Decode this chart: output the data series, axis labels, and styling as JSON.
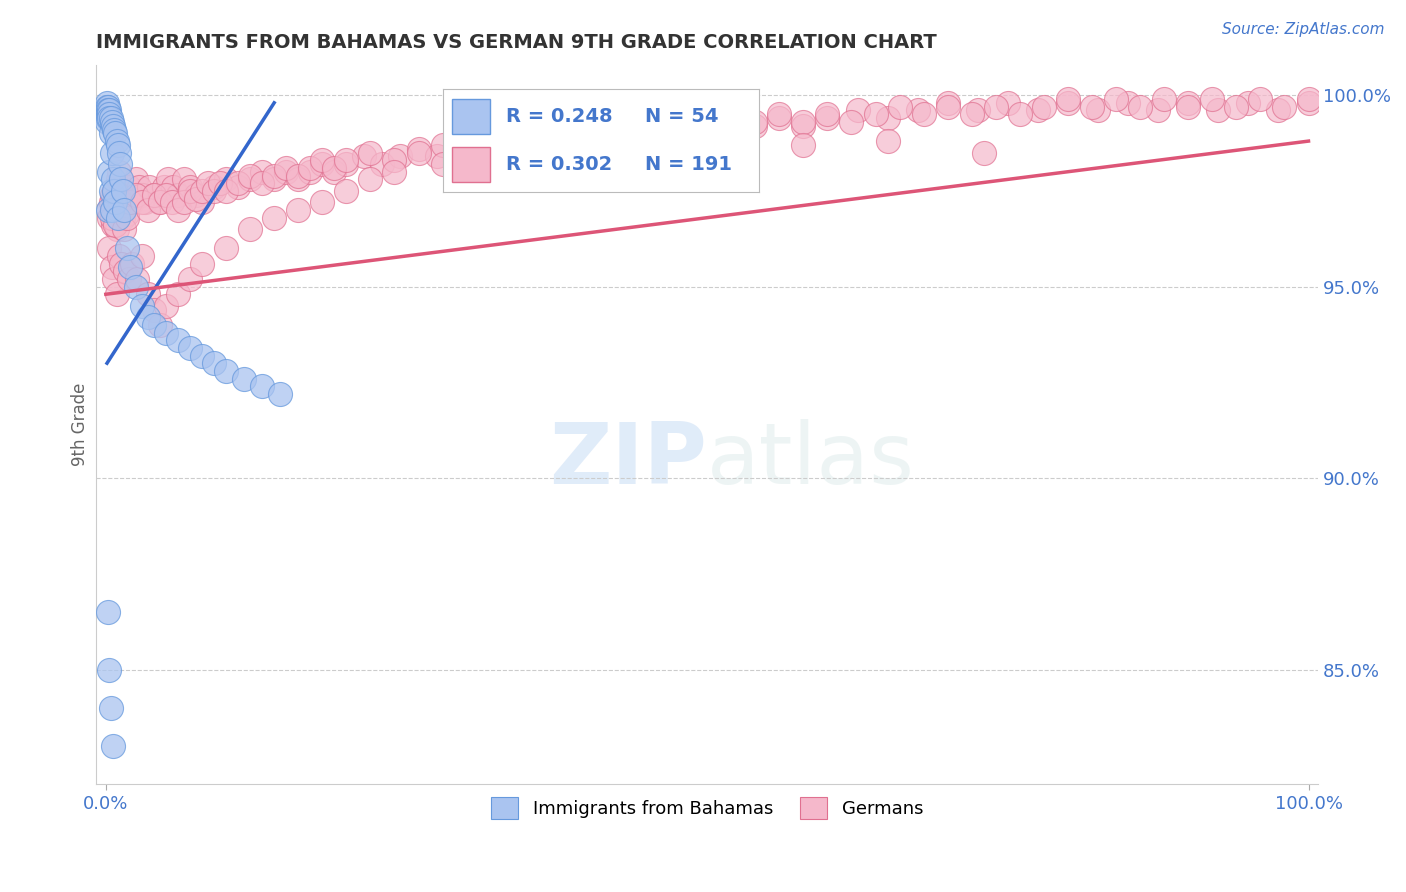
{
  "title": "IMMIGRANTS FROM BAHAMAS VS GERMAN 9TH GRADE CORRELATION CHART",
  "source": "Source: ZipAtlas.com",
  "ylabel": "9th Grade",
  "watermark_zip": "ZIP",
  "watermark_atlas": "atlas",
  "blue_color": "#aac4f0",
  "blue_edge": "#6699dd",
  "pink_color": "#f5b8cb",
  "pink_edge": "#e07090",
  "blue_line_color": "#3366cc",
  "blue_line_dash": "dashed",
  "pink_line_color": "#dd5577",
  "grid_color": "#cccccc",
  "title_color": "#333333",
  "axis_label_color": "#4477cc",
  "background_color": "#ffffff",
  "ylim": [
    0.82,
    1.008
  ],
  "xlim": [
    -0.008,
    1.008
  ],
  "blue_trend_x": [
    0.001,
    0.14
  ],
  "blue_trend_y": [
    0.93,
    0.998
  ],
  "pink_trend_x": [
    0.0,
    1.0
  ],
  "pink_trend_y": [
    0.948,
    0.988
  ],
  "blue_scatter_x": [
    0.001,
    0.001,
    0.001,
    0.001,
    0.001,
    0.001,
    0.002,
    0.002,
    0.002,
    0.002,
    0.002,
    0.003,
    0.003,
    0.003,
    0.003,
    0.004,
    0.004,
    0.004,
    0.005,
    0.005,
    0.005,
    0.006,
    0.006,
    0.007,
    0.007,
    0.008,
    0.008,
    0.009,
    0.01,
    0.01,
    0.011,
    0.012,
    0.013,
    0.014,
    0.015,
    0.018,
    0.02,
    0.025,
    0.03,
    0.035,
    0.04,
    0.05,
    0.06,
    0.07,
    0.08,
    0.09,
    0.1,
    0.115,
    0.13,
    0.145,
    0.002,
    0.003,
    0.004,
    0.006
  ],
  "blue_scatter_y": [
    0.998,
    0.997,
    0.996,
    0.995,
    0.994,
    0.993,
    0.997,
    0.996,
    0.995,
    0.994,
    0.97,
    0.996,
    0.995,
    0.994,
    0.98,
    0.994,
    0.99,
    0.975,
    0.993,
    0.985,
    0.97,
    0.992,
    0.978,
    0.991,
    0.975,
    0.99,
    0.972,
    0.988,
    0.987,
    0.968,
    0.985,
    0.982,
    0.978,
    0.975,
    0.97,
    0.96,
    0.955,
    0.95,
    0.945,
    0.942,
    0.94,
    0.938,
    0.936,
    0.934,
    0.932,
    0.93,
    0.928,
    0.926,
    0.924,
    0.922,
    0.865,
    0.85,
    0.84,
    0.83
  ],
  "pink_scatter_x": [
    0.002,
    0.003,
    0.004,
    0.005,
    0.006,
    0.007,
    0.008,
    0.009,
    0.01,
    0.011,
    0.012,
    0.013,
    0.014,
    0.015,
    0.016,
    0.017,
    0.018,
    0.019,
    0.02,
    0.022,
    0.025,
    0.028,
    0.03,
    0.033,
    0.036,
    0.04,
    0.044,
    0.048,
    0.052,
    0.056,
    0.06,
    0.065,
    0.07,
    0.075,
    0.08,
    0.09,
    0.1,
    0.11,
    0.12,
    0.13,
    0.14,
    0.15,
    0.16,
    0.17,
    0.18,
    0.19,
    0.2,
    0.215,
    0.23,
    0.245,
    0.26,
    0.275,
    0.29,
    0.305,
    0.32,
    0.34,
    0.36,
    0.38,
    0.4,
    0.42,
    0.44,
    0.46,
    0.48,
    0.5,
    0.52,
    0.54,
    0.56,
    0.58,
    0.6,
    0.625,
    0.65,
    0.675,
    0.7,
    0.725,
    0.75,
    0.775,
    0.8,
    0.825,
    0.85,
    0.875,
    0.9,
    0.925,
    0.95,
    0.975,
    1.0,
    0.005,
    0.008,
    0.01,
    0.012,
    0.015,
    0.018,
    0.02,
    0.025,
    0.03,
    0.035,
    0.04,
    0.045,
    0.05,
    0.055,
    0.06,
    0.065,
    0.07,
    0.075,
    0.08,
    0.085,
    0.09,
    0.095,
    0.1,
    0.11,
    0.12,
    0.13,
    0.14,
    0.15,
    0.16,
    0.17,
    0.18,
    0.19,
    0.2,
    0.22,
    0.24,
    0.26,
    0.28,
    0.3,
    0.32,
    0.34,
    0.36,
    0.38,
    0.4,
    0.42,
    0.44,
    0.46,
    0.48,
    0.5,
    0.52,
    0.54,
    0.56,
    0.58,
    0.6,
    0.62,
    0.64,
    0.66,
    0.68,
    0.7,
    0.72,
    0.74,
    0.76,
    0.78,
    0.8,
    0.82,
    0.84,
    0.86,
    0.88,
    0.9,
    0.92,
    0.94,
    0.96,
    0.98,
    1.0,
    0.003,
    0.005,
    0.007,
    0.009,
    0.011,
    0.013,
    0.016,
    0.019,
    0.022,
    0.026,
    0.03,
    0.035,
    0.04,
    0.045,
    0.05,
    0.06,
    0.07,
    0.08,
    0.1,
    0.12,
    0.14,
    0.16,
    0.18,
    0.2,
    0.22,
    0.24,
    0.28,
    0.32,
    0.37,
    0.43,
    0.5,
    0.58,
    0.65,
    0.73
  ],
  "pink_scatter_y": [
    0.97,
    0.968,
    0.972,
    0.974,
    0.966,
    0.975,
    0.973,
    0.965,
    0.978,
    0.98,
    0.972,
    0.97,
    0.968,
    0.975,
    0.973,
    0.971,
    0.969,
    0.976,
    0.974,
    0.972,
    0.978,
    0.976,
    0.974,
    0.972,
    0.976,
    0.974,
    0.972,
    0.976,
    0.978,
    0.976,
    0.974,
    0.978,
    0.976,
    0.974,
    0.972,
    0.976,
    0.978,
    0.976,
    0.978,
    0.98,
    0.978,
    0.98,
    0.978,
    0.98,
    0.982,
    0.98,
    0.982,
    0.984,
    0.982,
    0.984,
    0.986,
    0.984,
    0.986,
    0.984,
    0.986,
    0.988,
    0.986,
    0.988,
    0.99,
    0.988,
    0.99,
    0.992,
    0.99,
    0.992,
    0.994,
    0.992,
    0.994,
    0.992,
    0.994,
    0.996,
    0.994,
    0.996,
    0.998,
    0.996,
    0.998,
    0.996,
    0.998,
    0.996,
    0.998,
    0.996,
    0.998,
    0.996,
    0.998,
    0.996,
    0.998,
    0.968,
    0.966,
    0.97,
    0.972,
    0.965,
    0.968,
    0.972,
    0.974,
    0.972,
    0.97,
    0.974,
    0.972,
    0.974,
    0.972,
    0.97,
    0.972,
    0.975,
    0.973,
    0.975,
    0.977,
    0.975,
    0.977,
    0.975,
    0.977,
    0.979,
    0.977,
    0.979,
    0.981,
    0.979,
    0.981,
    0.983,
    0.981,
    0.983,
    0.985,
    0.983,
    0.985,
    0.987,
    0.985,
    0.987,
    0.989,
    0.987,
    0.989,
    0.991,
    0.989,
    0.991,
    0.993,
    0.991,
    0.993,
    0.991,
    0.993,
    0.995,
    0.993,
    0.995,
    0.993,
    0.995,
    0.997,
    0.995,
    0.997,
    0.995,
    0.997,
    0.995,
    0.997,
    0.999,
    0.997,
    0.999,
    0.997,
    0.999,
    0.997,
    0.999,
    0.997,
    0.999,
    0.997,
    0.999,
    0.96,
    0.955,
    0.952,
    0.948,
    0.958,
    0.956,
    0.954,
    0.952,
    0.956,
    0.952,
    0.958,
    0.948,
    0.944,
    0.94,
    0.945,
    0.948,
    0.952,
    0.956,
    0.96,
    0.965,
    0.968,
    0.97,
    0.972,
    0.975,
    0.978,
    0.98,
    0.982,
    0.985,
    0.985,
    0.986,
    0.987,
    0.987,
    0.988,
    0.985
  ]
}
